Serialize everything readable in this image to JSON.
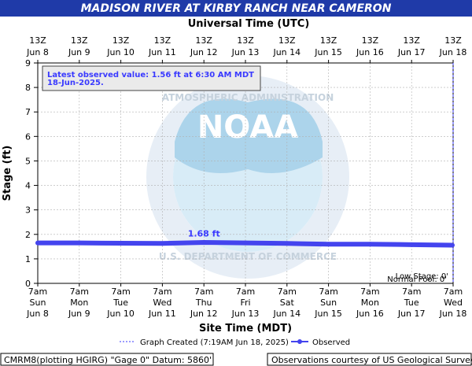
{
  "title": "MADISON RIVER AT KIRBY RANCH NEAR CAMERON",
  "top_axis_title": "Universal Time (UTC)",
  "bottom_axis_title": "Site Time (MDT)",
  "y_axis_title": "Stage (ft)",
  "latest_line1": "Latest observed value: 1.56 ft at 6:30 AM MDT",
  "latest_line2": "18-Jun-2025.",
  "point_annotation": "1.68 ft",
  "low_stage_label": "Low Stage: 0'",
  "normal_pool_label": "Normal Pool: 0'",
  "legend": {
    "created": "Graph Created (7:19AM Jun 18, 2025)",
    "observed": "Observed"
  },
  "footer_left": "CMRM8(plotting HGIRG) \"Gage 0\" Datum: 5860'",
  "footer_right": "Observations courtesy of US Geological Survey",
  "watermark": "NOAA NATIONAL OCEANIC AND ATMOSPHERIC ADMINISTRATION U.S. DEPARTMENT OF COMMERCE",
  "colors": {
    "title_bar": "#1f3aa8",
    "series": "#4444ee",
    "annotation": "#3a3aff",
    "noaa_light": "#d6ebf7",
    "noaa_dark": "#a8d2ea"
  },
  "chart_data": {
    "type": "line",
    "xlabel": "Site Time (MDT)",
    "ylabel": "Stage (ft)",
    "ylim": [
      0,
      9
    ],
    "yticks": [
      0,
      1,
      2,
      3,
      4,
      5,
      6,
      7,
      8,
      9
    ],
    "grid": true,
    "legend_position": "bottom",
    "top_ticks": [
      {
        "time": "13Z",
        "date": "Jun  8"
      },
      {
        "time": "13Z",
        "date": "Jun  9"
      },
      {
        "time": "13Z",
        "date": "Jun 10"
      },
      {
        "time": "13Z",
        "date": "Jun 11"
      },
      {
        "time": "13Z",
        "date": "Jun 12"
      },
      {
        "time": "13Z",
        "date": "Jun 13"
      },
      {
        "time": "13Z",
        "date": "Jun 14"
      },
      {
        "time": "13Z",
        "date": "Jun 15"
      },
      {
        "time": "13Z",
        "date": "Jun 16"
      },
      {
        "time": "13Z",
        "date": "Jun 17"
      },
      {
        "time": "13Z",
        "date": "Jun 18"
      }
    ],
    "bottom_ticks": [
      {
        "time": "7am",
        "day": "Sun",
        "date": "Jun 8"
      },
      {
        "time": "7am",
        "day": "Mon",
        "date": "Jun 9"
      },
      {
        "time": "7am",
        "day": "Tue",
        "date": "Jun 10"
      },
      {
        "time": "7am",
        "day": "Wed",
        "date": "Jun 11"
      },
      {
        "time": "7am",
        "day": "Thu",
        "date": "Jun 12"
      },
      {
        "time": "7am",
        "day": "Fri",
        "date": "Jun 13"
      },
      {
        "time": "7am",
        "day": "Sat",
        "date": "Jun 14"
      },
      {
        "time": "7am",
        "day": "Sun",
        "date": "Jun 15"
      },
      {
        "time": "7am",
        "day": "Mon",
        "date": "Jun 16"
      },
      {
        "time": "7am",
        "day": "Tue",
        "date": "Jun 17"
      },
      {
        "time": "7am",
        "day": "Wed",
        "date": "Jun 18"
      }
    ],
    "series": [
      {
        "name": "Observed",
        "x": [
          "Jun 8 7am",
          "Jun 9 7am",
          "Jun 10 7am",
          "Jun 11 7am",
          "Jun 12 7am",
          "Jun 13 7am",
          "Jun 14 7am",
          "Jun 15 7am",
          "Jun 16 7am",
          "Jun 17 7am",
          "Jun 18 6:30am"
        ],
        "values": [
          1.65,
          1.65,
          1.64,
          1.63,
          1.67,
          1.65,
          1.63,
          1.6,
          1.6,
          1.58,
          1.56
        ]
      }
    ],
    "highlight": {
      "x": "Jun 12 7am",
      "value": 1.68
    }
  }
}
